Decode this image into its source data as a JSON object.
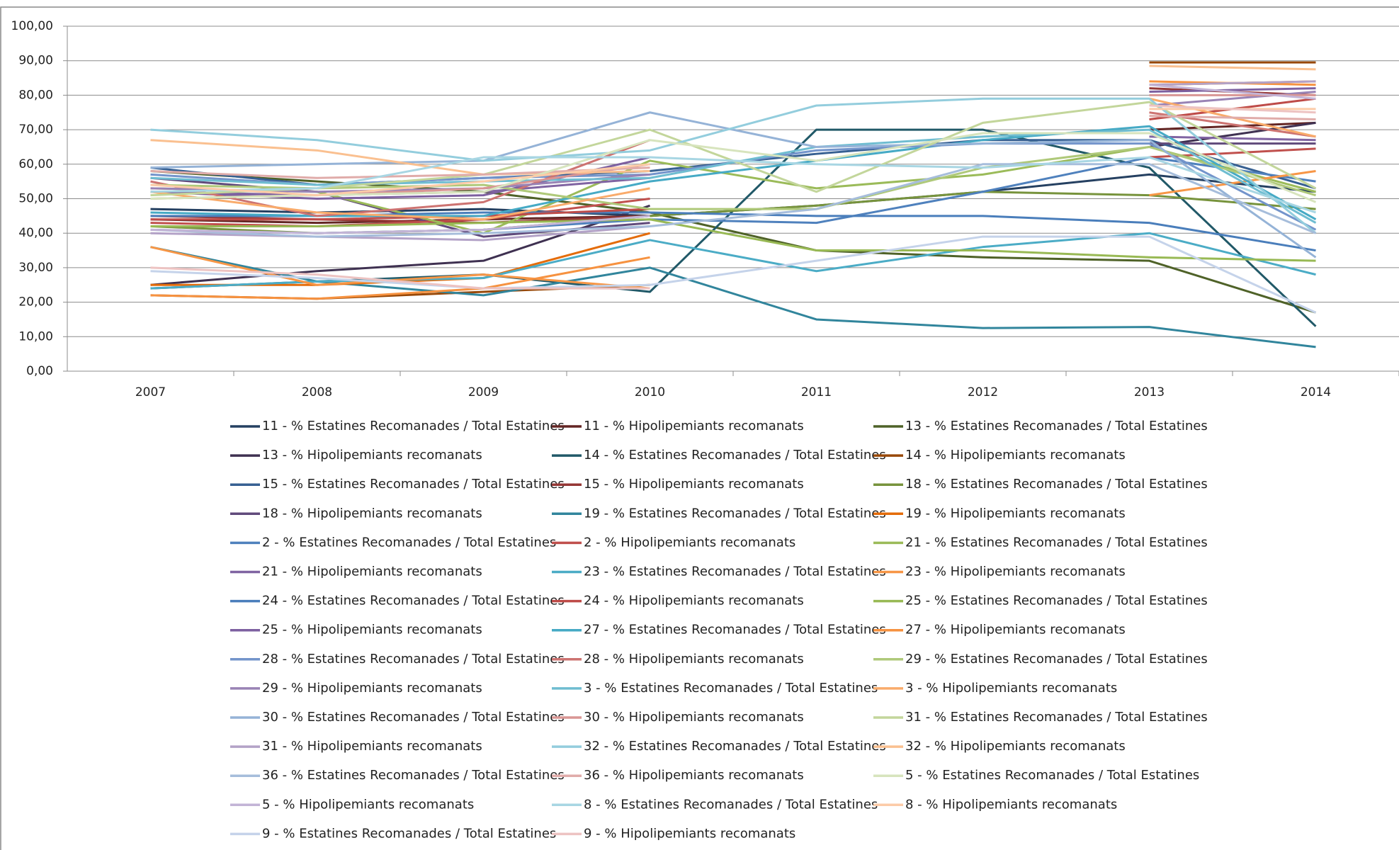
{
  "chart_data": {
    "type": "line",
    "categories": [
      "2007",
      "2008",
      "2009",
      "2010",
      "2011",
      "2012",
      "2013",
      "2014"
    ],
    "ylim": [
      0,
      100
    ],
    "yticks": [
      {
        "value": 0,
        "label": "0,00"
      },
      {
        "value": 10,
        "label": "10,00"
      },
      {
        "value": 20,
        "label": "20,00"
      },
      {
        "value": 30,
        "label": "30,00"
      },
      {
        "value": 40,
        "label": "40,00"
      },
      {
        "value": 50,
        "label": "50,00"
      },
      {
        "value": 60,
        "label": "60,00"
      },
      {
        "value": 70,
        "label": "70,00"
      },
      {
        "value": 80,
        "label": "80,00"
      },
      {
        "value": 90,
        "label": "90,00"
      },
      {
        "value": 100,
        "label": "100,00"
      }
    ],
    "grid": true,
    "series": [
      {
        "name": "11 - % Estatines Recomanades / Total Estatines",
        "color": "#254061",
        "values": [
          47,
          46,
          47,
          45,
          48,
          52,
          57,
          52
        ]
      },
      {
        "name": "11 - % Hipolipemiants recomanats",
        "color": "#632523",
        "values": [
          44,
          43,
          44,
          45,
          null,
          null,
          70,
          72
        ]
      },
      {
        "name": "13 - % Estatines Recomanades / Total Estatines",
        "color": "#4F6228",
        "values": [
          58,
          55,
          52,
          46,
          35,
          33,
          32,
          17
        ]
      },
      {
        "name": "13 - % Hipolipemiants recomanats",
        "color": "#3F3151",
        "values": [
          25,
          29,
          32,
          48,
          null,
          null,
          65,
          72
        ]
      },
      {
        "name": "14 - % Estatines Recomanades / Total Estatines",
        "color": "#215968",
        "values": [
          24,
          26,
          28,
          23,
          70,
          70,
          59,
          13
        ]
      },
      {
        "name": "14 - % Hipolipemiants recomanats",
        "color": "#984807",
        "values": [
          22,
          21,
          23,
          25,
          null,
          null,
          89.5,
          89.5
        ]
      },
      {
        "name": "15 - % Estatines Recomanades / Total Estatines",
        "color": "#376092",
        "values": [
          59,
          54,
          56,
          58,
          63,
          67,
          67,
          53
        ]
      },
      {
        "name": "15 - % Hipolipemiants recomanats",
        "color": "#953735",
        "values": [
          45,
          44,
          43,
          45,
          null,
          null,
          82,
          80
        ]
      },
      {
        "name": "18 - % Estatines Recomanades / Total Estatines",
        "color": "#77933C",
        "values": [
          42,
          40,
          41,
          45,
          48,
          52,
          51,
          47
        ]
      },
      {
        "name": "18 - % Hipolipemiants recomanats",
        "color": "#604A7B",
        "values": [
          56,
          52,
          39,
          43,
          null,
          null,
          66,
          66
        ]
      },
      {
        "name": "19 - % Estatines Recomanades / Total Estatines",
        "color": "#31859C",
        "values": [
          36,
          26,
          22,
          30,
          15,
          12.5,
          12.8,
          7
        ]
      },
      {
        "name": "19 - % Hipolipemiants recomanats",
        "color": "#E46C0A",
        "values": [
          25,
          25,
          27,
          40,
          null,
          null,
          83,
          84
        ]
      },
      {
        "name": "2 - % Estatines Recomanades / Total Estatines",
        "color": "#4F81BD",
        "values": [
          41,
          40,
          41,
          44,
          43,
          52,
          62,
          55
        ]
      },
      {
        "name": "2 - % Hipolipemiants recomanats",
        "color": "#C0504D",
        "values": [
          43,
          42,
          44,
          50,
          null,
          null,
          62,
          64.5
        ]
      },
      {
        "name": "21 - % Estatines Recomanades / Total Estatines",
        "color": "#9BBB59",
        "values": [
          53,
          52,
          40,
          61,
          53,
          57,
          65,
          52
        ]
      },
      {
        "name": "21 - % Hipolipemiants recomanats",
        "color": "#8064A2",
        "values": [
          52,
          51,
          52,
          56,
          null,
          null,
          68,
          67
        ]
      },
      {
        "name": "23 - % Estatines Recomanades / Total Estatines",
        "color": "#4BACC6",
        "values": [
          24,
          26,
          27,
          38,
          29,
          36,
          40,
          28
        ]
      },
      {
        "name": "23 - % Hipolipemiants recomanats",
        "color": "#F79646",
        "values": [
          36,
          25,
          28,
          24,
          null,
          null,
          51,
          58
        ]
      },
      {
        "name": "24 - % Estatines Recomanades / Total Estatines",
        "color": "#4A7EBB",
        "values": [
          45,
          45,
          46,
          46,
          45,
          45,
          43,
          35
        ]
      },
      {
        "name": "24 - % Hipolipemiants recomanats",
        "color": "#BE4B48",
        "values": [
          44,
          44,
          45,
          47,
          null,
          null,
          73,
          79
        ]
      },
      {
        "name": "25 - % Estatines Recomanades / Total Estatines",
        "color": "#98B954",
        "values": [
          42,
          42,
          43,
          44,
          35,
          35,
          33,
          32
        ]
      },
      {
        "name": "25 - % Hipolipemiants recomanats",
        "color": "#7D60A0",
        "values": [
          52,
          50,
          51,
          62,
          null,
          null,
          81,
          82
        ]
      },
      {
        "name": "27 - % Estatines Recomanades / Total Estatines",
        "color": "#46AAC5",
        "values": [
          46,
          45,
          45,
          55,
          61,
          67,
          71,
          44
        ]
      },
      {
        "name": "27 - % Hipolipemiants recomanats",
        "color": "#F69240",
        "values": [
          22,
          21,
          24,
          33,
          null,
          null,
          84,
          83
        ]
      },
      {
        "name": "28 - % Estatines Recomanades / Total Estatines",
        "color": "#7394CB",
        "values": [
          57,
          54,
          56,
          57,
          64,
          66,
          66,
          41
        ]
      },
      {
        "name": "28 - % Hipolipemiants recomanats",
        "color": "#CD7371",
        "values": [
          55,
          45,
          49,
          67,
          null,
          null,
          75,
          68
        ]
      },
      {
        "name": "29 - % Estatines Recomanades / Total Estatines",
        "color": "#AFC97A",
        "values": [
          54,
          53,
          54,
          47,
          47,
          59,
          65,
          51
        ]
      },
      {
        "name": "29 - % Hipolipemiants recomanats",
        "color": "#9983B5",
        "values": [
          53,
          52,
          53,
          57,
          null,
          null,
          77,
          81
        ]
      },
      {
        "name": "3 - % Estatines Recomanades / Total Estatines",
        "color": "#6FBDD1",
        "values": [
          56,
          54,
          55,
          56,
          65,
          68,
          70,
          43
        ]
      },
      {
        "name": "3 - % Hipolipemiants recomanats",
        "color": "#F9AB6B",
        "values": [
          52,
          46,
          44,
          53,
          null,
          null,
          79,
          68
        ]
      },
      {
        "name": "30 - % Estatines Recomanades / Total Estatines",
        "color": "#95B3D7",
        "values": [
          59,
          60,
          61,
          75,
          65,
          66,
          67,
          33
        ]
      },
      {
        "name": "30 - % Hipolipemiants recomanats",
        "color": "#D99694",
        "values": [
          50,
          51,
          53,
          60,
          null,
          null,
          80,
          80
        ]
      },
      {
        "name": "31 - % Estatines Recomanades / Total Estatines",
        "color": "#C3D69B",
        "values": [
          51,
          53,
          57,
          70,
          52,
          72,
          78,
          53
        ]
      },
      {
        "name": "31 - % Hipolipemiants recomanats",
        "color": "#B3A2C7",
        "values": [
          40,
          39,
          38,
          42,
          null,
          null,
          83,
          84
        ]
      },
      {
        "name": "32 - % Estatines Recomanades / Total Estatines",
        "color": "#93CDDD",
        "values": [
          70,
          67,
          61,
          64,
          77,
          79,
          79,
          40
        ]
      },
      {
        "name": "32 - % Hipolipemiants recomanats",
        "color": "#FAC090",
        "values": [
          67,
          64,
          57,
          58,
          null,
          null,
          88.5,
          87.5
        ]
      },
      {
        "name": "36 - % Estatines Recomanades / Total Estatines",
        "color": "#A6BDDB",
        "values": [
          41,
          39,
          40,
          42,
          47,
          60,
          60,
          40
        ]
      },
      {
        "name": "36 - % Hipolipemiants recomanats",
        "color": "#E0ACAA",
        "values": [
          58,
          56,
          57,
          59,
          null,
          null,
          74,
          73
        ]
      },
      {
        "name": "5 - % Estatines Recomanades / Total Estatines",
        "color": "#D7E4BD",
        "values": [
          50,
          51,
          52,
          67,
          61,
          69,
          69,
          49
        ]
      },
      {
        "name": "5 - % Hipolipemiants recomanats",
        "color": "#C3B4D6",
        "values": [
          41,
          40,
          41,
          45,
          null,
          null,
          83,
          79
        ]
      },
      {
        "name": "8 - % Estatines Recomanades / Total Estatines",
        "color": "#A8D6E3",
        "values": [
          52,
          53,
          62,
          62,
          60,
          59,
          62,
          46
        ]
      },
      {
        "name": "8 - % Hipolipemiants recomanats",
        "color": "#FCCBA8",
        "values": [
          54,
          51,
          55,
          60,
          null,
          null,
          76,
          76
        ]
      },
      {
        "name": "9 - % Estatines Recomanades / Total Estatines",
        "color": "#C5D3EA",
        "values": [
          29,
          27,
          24,
          25,
          32,
          39,
          39,
          17
        ]
      },
      {
        "name": "9 - % Hipolipemiants recomanats",
        "color": "#EDC3C2",
        "values": [
          30,
          28,
          24,
          24,
          null,
          null,
          77,
          75
        ]
      }
    ]
  }
}
